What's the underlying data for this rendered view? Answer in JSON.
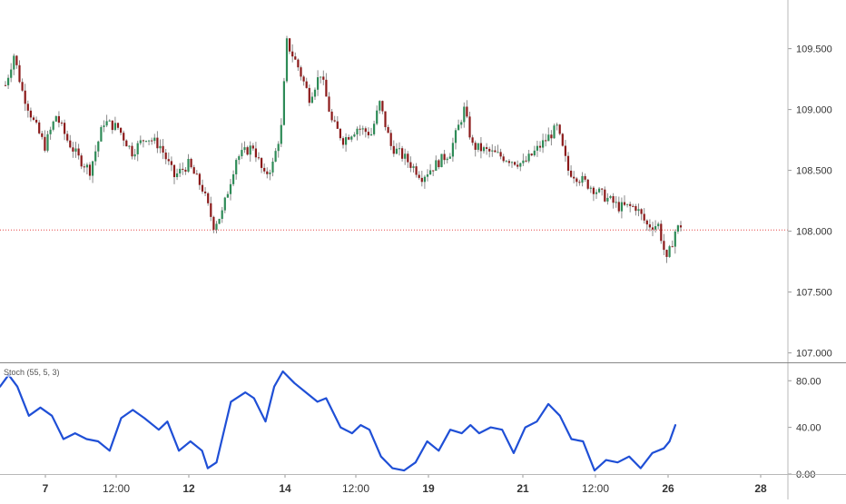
{
  "chart_data": [
    {
      "type": "candlestick",
      "panel": "price",
      "title": "",
      "ylim": [
        106.93,
        109.9
      ],
      "yticks": [
        107.0,
        107.5,
        108.0,
        108.5,
        109.0,
        109.5
      ],
      "ytick_labels": [
        "107.000",
        "107.500",
        "108.000",
        "108.500",
        "109.000",
        "109.500"
      ],
      "current_price_line": 108.01,
      "x_tick_labels": [
        "7",
        "12:00",
        "12",
        "14",
        "12:00",
        "19",
        "21",
        "12:00",
        "26",
        "28"
      ],
      "ohlc_anchor_path": [
        [
          0,
          109.2
        ],
        [
          3,
          109.45
        ],
        [
          6,
          109.15
        ],
        [
          10,
          108.9
        ],
        [
          14,
          108.7
        ],
        [
          18,
          108.95
        ],
        [
          22,
          108.75
        ],
        [
          26,
          108.6
        ],
        [
          30,
          108.5
        ],
        [
          35,
          108.9
        ],
        [
          40,
          108.85
        ],
        [
          45,
          108.65
        ],
        [
          50,
          108.78
        ],
        [
          55,
          108.7
        ],
        [
          60,
          108.45
        ],
        [
          65,
          108.55
        ],
        [
          70,
          108.35
        ],
        [
          74,
          108.05
        ],
        [
          77,
          108.15
        ],
        [
          82,
          108.6
        ],
        [
          88,
          108.7
        ],
        [
          92,
          108.45
        ],
        [
          95,
          108.55
        ],
        [
          98,
          108.85
        ],
        [
          100,
          109.55
        ],
        [
          104,
          109.35
        ],
        [
          108,
          109.1
        ],
        [
          112,
          109.3
        ],
        [
          116,
          108.9
        ],
        [
          120,
          108.75
        ],
        [
          125,
          108.85
        ],
        [
          130,
          108.8
        ],
        [
          133,
          109.05
        ],
        [
          137,
          108.7
        ],
        [
          142,
          108.6
        ],
        [
          148,
          108.45
        ],
        [
          153,
          108.55
        ],
        [
          158,
          108.65
        ],
        [
          163,
          109.0
        ],
        [
          166,
          108.7
        ],
        [
          172,
          108.65
        ],
        [
          178,
          108.6
        ],
        [
          184,
          108.55
        ],
        [
          190,
          108.7
        ],
        [
          196,
          108.85
        ],
        [
          200,
          108.5
        ],
        [
          206,
          108.4
        ],
        [
          212,
          108.3
        ],
        [
          218,
          108.2
        ],
        [
          224,
          108.2
        ],
        [
          228,
          108.05
        ],
        [
          232,
          108.05
        ],
        [
          235,
          107.75
        ],
        [
          238,
          108.0
        ],
        [
          240,
          108.05
        ]
      ]
    },
    {
      "type": "line",
      "panel": "oscillator",
      "series": [
        {
          "name": "Stoch (55, 5, 3)",
          "color": "#1f4fd6",
          "points": [
            [
              0,
              75
            ],
            [
              3,
              85
            ],
            [
              6,
              75
            ],
            [
              10,
              50
            ],
            [
              14,
              57
            ],
            [
              18,
              50
            ],
            [
              22,
              30
            ],
            [
              26,
              35
            ],
            [
              30,
              30
            ],
            [
              34,
              28
            ],
            [
              38,
              20
            ],
            [
              42,
              48
            ],
            [
              46,
              55
            ],
            [
              50,
              48
            ],
            [
              55,
              38
            ],
            [
              58,
              45
            ],
            [
              62,
              20
            ],
            [
              66,
              28
            ],
            [
              70,
              20
            ],
            [
              72,
              5
            ],
            [
              75,
              10
            ],
            [
              80,
              62
            ],
            [
              85,
              70
            ],
            [
              88,
              65
            ],
            [
              92,
              45
            ],
            [
              95,
              75
            ],
            [
              98,
              88
            ],
            [
              102,
              78
            ],
            [
              106,
              70
            ],
            [
              110,
              62
            ],
            [
              113,
              65
            ],
            [
              118,
              40
            ],
            [
              122,
              35
            ],
            [
              125,
              42
            ],
            [
              128,
              38
            ],
            [
              132,
              15
            ],
            [
              136,
              5
            ],
            [
              140,
              3
            ],
            [
              144,
              10
            ],
            [
              148,
              28
            ],
            [
              152,
              20
            ],
            [
              156,
              38
            ],
            [
              160,
              35
            ],
            [
              163,
              42
            ],
            [
              166,
              35
            ],
            [
              170,
              40
            ],
            [
              174,
              38
            ],
            [
              178,
              18
            ],
            [
              182,
              40
            ],
            [
              186,
              45
            ],
            [
              190,
              60
            ],
            [
              194,
              50
            ],
            [
              198,
              30
            ],
            [
              202,
              28
            ],
            [
              206,
              3
            ],
            [
              210,
              12
            ],
            [
              214,
              10
            ],
            [
              218,
              15
            ],
            [
              222,
              5
            ],
            [
              226,
              18
            ],
            [
              230,
              22
            ],
            [
              232,
              28
            ],
            [
              234,
              42
            ]
          ]
        }
      ],
      "ylim": [
        0,
        95
      ],
      "yticks": [
        0,
        40,
        80
      ],
      "ytick_labels": [
        "0.00",
        "40.00",
        "80.00"
      ]
    }
  ]
}
